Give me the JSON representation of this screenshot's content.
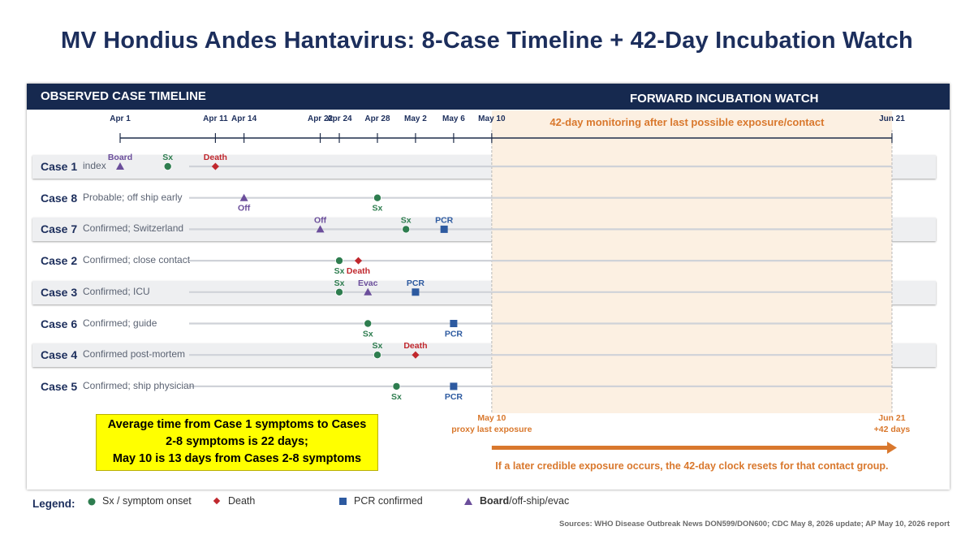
{
  "title": "MV Hondius Andes Hantavirus: 8-Case Timeline + 42-Day Incubation Watch",
  "sections": {
    "observed": "OBSERVED CASE TIMELINE",
    "forward": "FORWARD INCUBATION WATCH",
    "monitoring_note": "42-day monitoring after last possible exposure/contact"
  },
  "colors": {
    "header": "#16294f",
    "title": "#1c2e5c",
    "symptom": "#2e7d4f",
    "death": "#c0272d",
    "pcr": "#2d5aa0",
    "travel": "#6b4e9b",
    "watch_fill": "#fcf0e2",
    "watch_accent": "#d9782d"
  },
  "chart_data": {
    "type": "timeline",
    "x_range": [
      "Apr 1",
      "Jun 21"
    ],
    "ticks": [
      {
        "date": "2026-04-01",
        "label": "Apr 1"
      },
      {
        "date": "2026-04-11",
        "label": "Apr 11"
      },
      {
        "date": "2026-04-14",
        "label": "Apr 14"
      },
      {
        "date": "2026-04-22",
        "label": "Apr 22"
      },
      {
        "date": "2026-04-24",
        "label": "Apr 24"
      },
      {
        "date": "2026-04-28",
        "label": "Apr 28"
      },
      {
        "date": "2026-05-02",
        "label": "May 2"
      },
      {
        "date": "2026-05-06",
        "label": "May 6"
      },
      {
        "date": "2026-05-10",
        "label": "May 10"
      },
      {
        "date": "2026-06-21",
        "label": "Jun 21"
      }
    ],
    "watch_window": {
      "start": "2026-05-10",
      "end": "2026-06-21"
    },
    "cases": [
      {
        "label": "Case 1",
        "desc": "index",
        "events": [
          {
            "type": "board",
            "date": "2026-04-01",
            "label": "Board",
            "pos": "above"
          },
          {
            "type": "sx",
            "date": "2026-04-06",
            "label": "Sx",
            "pos": "above"
          },
          {
            "type": "death",
            "date": "2026-04-11",
            "label": "Death",
            "pos": "above"
          }
        ]
      },
      {
        "label": "Case 8",
        "desc": "Probable; off ship early",
        "events": [
          {
            "type": "board",
            "date": "2026-04-14",
            "label": "Off",
            "pos": "below"
          },
          {
            "type": "sx",
            "date": "2026-04-28",
            "label": "Sx",
            "pos": "below"
          }
        ]
      },
      {
        "label": "Case 7",
        "desc": "Confirmed; Switzerland",
        "events": [
          {
            "type": "board",
            "date": "2026-04-22",
            "label": "Off",
            "pos": "above"
          },
          {
            "type": "sx",
            "date": "2026-05-01",
            "label": "Sx",
            "pos": "above"
          },
          {
            "type": "pcr",
            "date": "2026-05-05",
            "label": "PCR",
            "pos": "above"
          }
        ]
      },
      {
        "label": "Case 2",
        "desc": "Confirmed; close contact",
        "events": [
          {
            "type": "sx",
            "date": "2026-04-24",
            "label": "Sx",
            "pos": "below"
          },
          {
            "type": "death",
            "date": "2026-04-26",
            "label": "Death",
            "pos": "below"
          }
        ]
      },
      {
        "label": "Case 3",
        "desc": "Confirmed; ICU",
        "events": [
          {
            "type": "sx",
            "date": "2026-04-24",
            "label": "Sx",
            "pos": "above"
          },
          {
            "type": "board",
            "date": "2026-04-27",
            "label": "Evac",
            "pos": "above"
          },
          {
            "type": "pcr",
            "date": "2026-05-02",
            "label": "PCR",
            "pos": "above"
          }
        ]
      },
      {
        "label": "Case 6",
        "desc": "Confirmed; guide",
        "events": [
          {
            "type": "sx",
            "date": "2026-04-27",
            "label": "Sx",
            "pos": "below"
          },
          {
            "type": "pcr",
            "date": "2026-05-06",
            "label": "PCR",
            "pos": "below"
          }
        ]
      },
      {
        "label": "Case 4",
        "desc": "Confirmed post-mortem",
        "events": [
          {
            "type": "sx",
            "date": "2026-04-28",
            "label": "Sx",
            "pos": "above"
          },
          {
            "type": "death",
            "date": "2026-05-02",
            "label": "Death",
            "pos": "above"
          }
        ]
      },
      {
        "label": "Case 5",
        "desc": "Confirmed; ship physician",
        "events": [
          {
            "type": "sx",
            "date": "2026-04-30",
            "label": "Sx",
            "pos": "below"
          },
          {
            "type": "pcr",
            "date": "2026-05-06",
            "label": "PCR",
            "pos": "below"
          }
        ]
      }
    ],
    "annotations": {
      "start_label_1": "May 10",
      "start_label_2": "proxy last exposure",
      "end_label_1": "Jun 21",
      "end_label_2": "+42 days",
      "reset_note": "If a later credible exposure occurs, the 42-day clock resets for that contact group."
    }
  },
  "callout": {
    "line1": "Average time from Case 1 symptoms to Cases",
    "line2": "2-8 symptoms is 22 days;",
    "line3": "May 10 is 13 days from Cases 2-8 symptoms"
  },
  "legend": {
    "title": "Legend:",
    "sx": "Sx / symptom onset",
    "death": "Death",
    "pcr": "PCR confirmed",
    "board_bold": "Board",
    "board_rest": "/off-ship/evac"
  },
  "sources": "Sources: WHO Disease Outbreak News DON599/DON600; CDC May 8, 2026 update; AP May 10, 2026 report"
}
